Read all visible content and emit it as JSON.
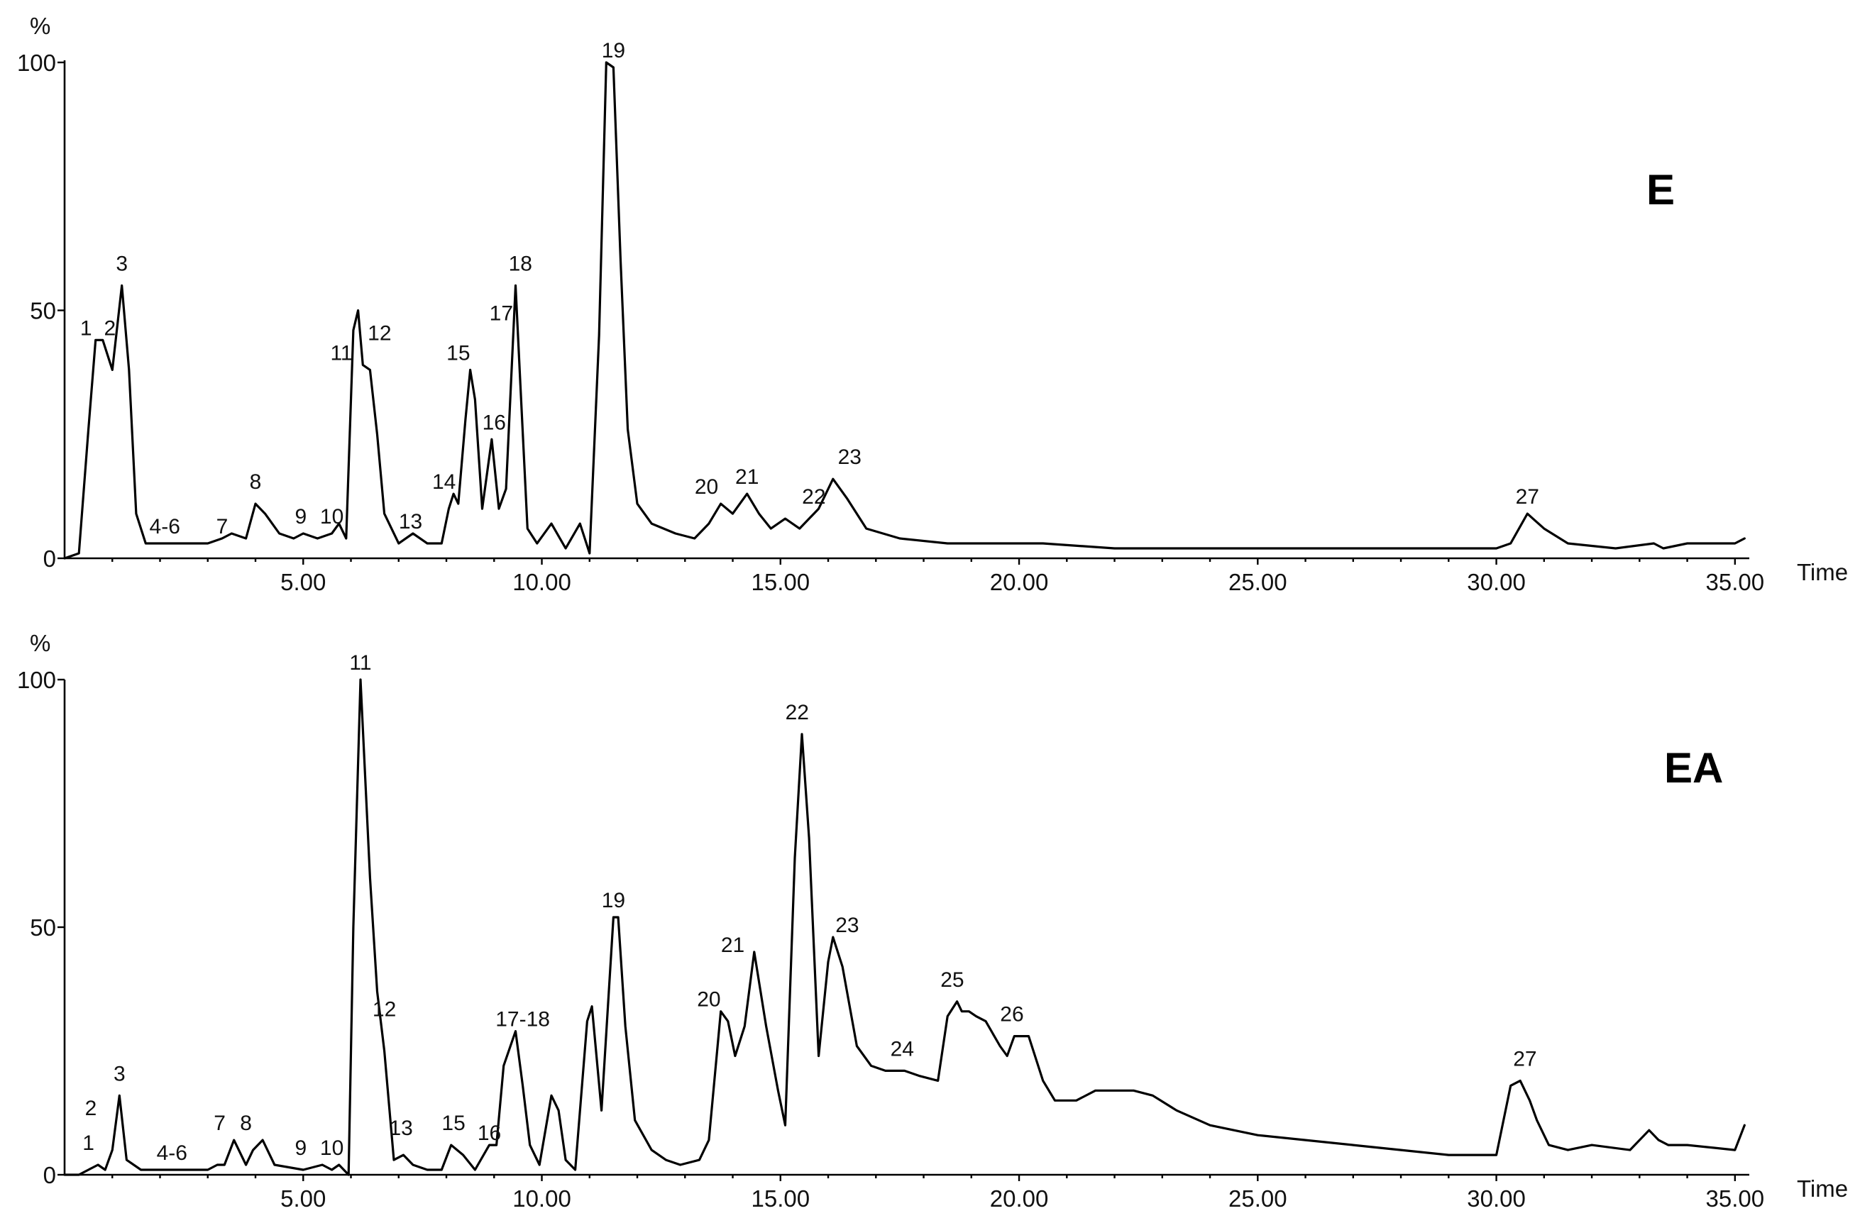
{
  "chart_data": [
    {
      "type": "line",
      "panel_label": "E",
      "ylabel": "%",
      "xlabel": "Time",
      "xlim": [
        0,
        35.3
      ],
      "ylim": [
        0,
        100
      ],
      "xticks": [
        "5.00",
        "10.00",
        "15.00",
        "20.00",
        "25.00",
        "30.00",
        "35.00"
      ],
      "yticks": [
        "0",
        "50",
        "100"
      ],
      "series": [
        {
          "x": [
            0.0,
            0.3,
            0.5,
            0.65,
            0.8,
            1.0,
            1.2,
            1.35,
            1.5,
            1.7,
            1.9,
            2.1,
            2.5,
            3.0,
            3.3,
            3.5,
            3.8,
            4.0,
            4.2,
            4.5,
            4.8,
            5.0,
            5.3,
            5.6,
            5.75,
            5.9,
            6.05,
            6.15,
            6.25,
            6.4,
            6.55,
            6.7,
            7.0,
            7.3,
            7.6,
            7.9,
            8.05,
            8.15,
            8.25,
            8.4,
            8.5,
            8.6,
            8.75,
            8.95,
            9.1,
            9.25,
            9.45,
            9.55,
            9.7,
            9.9,
            10.2,
            10.5,
            10.8,
            11.0,
            11.2,
            11.35,
            11.5,
            11.65,
            11.8,
            12.0,
            12.3,
            12.8,
            13.2,
            13.5,
            13.75,
            14.0,
            14.3,
            14.55,
            14.8,
            15.1,
            15.4,
            15.8,
            16.1,
            16.4,
            16.8,
            17.5,
            18.5,
            19.5,
            20.5,
            22.0,
            25.0,
            28.0,
            30.0,
            30.3,
            30.65,
            31.0,
            31.5,
            32.5,
            33.3,
            33.5,
            34.0,
            35.0,
            35.2
          ],
          "y": [
            0,
            1,
            26,
            44,
            44,
            38,
            55,
            38,
            9,
            3,
            3,
            3,
            3,
            3,
            4,
            5,
            4,
            11,
            9,
            5,
            4,
            5,
            4,
            5,
            7,
            4,
            46,
            50,
            39,
            38,
            25,
            9,
            3,
            5,
            3,
            3,
            10,
            13,
            11,
            28,
            38,
            32,
            10,
            24,
            10,
            14,
            55,
            35,
            6,
            3,
            7,
            2,
            7,
            1,
            45,
            100,
            99,
            60,
            26,
            11,
            7,
            5,
            4,
            7,
            11,
            9,
            13,
            9,
            6,
            8,
            6,
            10,
            16,
            12,
            6,
            4,
            3,
            3,
            3,
            2,
            2,
            2,
            2,
            3,
            9,
            6,
            3,
            2,
            3,
            2,
            3,
            3,
            4
          ]
        }
      ],
      "annotations": [
        {
          "text": "1",
          "x": 0.45,
          "y": 45
        },
        {
          "text": "2",
          "x": 0.95,
          "y": 45
        },
        {
          "text": "3",
          "x": 1.2,
          "y": 58
        },
        {
          "text": "4-6",
          "x": 2.1,
          "y": 5
        },
        {
          "text": "7",
          "x": 3.3,
          "y": 5
        },
        {
          "text": "8",
          "x": 4.0,
          "y": 14
        },
        {
          "text": "9",
          "x": 4.95,
          "y": 7
        },
        {
          "text": "10",
          "x": 5.6,
          "y": 7
        },
        {
          "text": "11",
          "x": 5.8,
          "y": 40
        },
        {
          "text": "12",
          "x": 6.6,
          "y": 44
        },
        {
          "text": "13",
          "x": 7.25,
          "y": 6
        },
        {
          "text": "14",
          "x": 7.95,
          "y": 14
        },
        {
          "text": "15",
          "x": 8.25,
          "y": 40
        },
        {
          "text": "16",
          "x": 9.0,
          "y": 26
        },
        {
          "text": "17",
          "x": 9.15,
          "y": 48
        },
        {
          "text": "18",
          "x": 9.55,
          "y": 58
        },
        {
          "text": "19",
          "x": 11.5,
          "y": 101
        },
        {
          "text": "20",
          "x": 13.45,
          "y": 13
        },
        {
          "text": "21",
          "x": 14.3,
          "y": 15
        },
        {
          "text": "22",
          "x": 15.7,
          "y": 11
        },
        {
          "text": "23",
          "x": 16.45,
          "y": 19
        },
        {
          "text": "27",
          "x": 30.65,
          "y": 11
        }
      ]
    },
    {
      "type": "line",
      "panel_label": "EA",
      "ylabel": "%",
      "xlabel": "Time",
      "xlim": [
        0,
        35.3
      ],
      "ylim": [
        0,
        100
      ],
      "xticks": [
        "5.00",
        "10.00",
        "15.00",
        "20.00",
        "25.00",
        "30.00",
        "35.00"
      ],
      "yticks": [
        "0",
        "50",
        "100"
      ],
      "series": [
        {
          "x": [
            0.0,
            0.3,
            0.5,
            0.7,
            0.85,
            1.0,
            1.15,
            1.3,
            1.6,
            2.0,
            2.5,
            3.0,
            3.2,
            3.35,
            3.55,
            3.8,
            3.95,
            4.15,
            4.4,
            5.0,
            5.4,
            5.6,
            5.75,
            5.95,
            6.05,
            6.2,
            6.4,
            6.55,
            6.7,
            6.9,
            7.1,
            7.3,
            7.6,
            7.9,
            8.1,
            8.35,
            8.6,
            8.9,
            9.05,
            9.2,
            9.45,
            9.6,
            9.75,
            9.95,
            10.2,
            10.35,
            10.5,
            10.7,
            10.95,
            11.05,
            11.25,
            11.5,
            11.6,
            11.75,
            11.95,
            12.3,
            12.6,
            12.9,
            13.3,
            13.5,
            13.75,
            13.9,
            14.05,
            14.25,
            14.45,
            14.7,
            14.95,
            15.1,
            15.3,
            15.45,
            15.6,
            15.8,
            16.0,
            16.1,
            16.3,
            16.6,
            16.9,
            17.2,
            17.6,
            17.9,
            18.3,
            18.5,
            18.7,
            18.8,
            18.95,
            19.1,
            19.3,
            19.6,
            19.75,
            19.9,
            20.2,
            20.5,
            20.75,
            21.2,
            21.6,
            22.0,
            22.4,
            22.8,
            23.3,
            24.0,
            25.0,
            26.0,
            27.0,
            28.0,
            29.0,
            30.0,
            30.3,
            30.5,
            30.7,
            30.85,
            31.1,
            31.5,
            32.0,
            32.8,
            33.2,
            33.4,
            33.6,
            34.0,
            35.0,
            35.2
          ],
          "y": [
            0,
            0,
            1,
            2,
            1,
            5,
            16,
            3,
            1,
            1,
            1,
            1,
            2,
            2,
            7,
            2,
            5,
            7,
            2,
            1,
            2,
            1,
            2,
            0,
            50,
            100,
            60,
            37,
            25,
            3,
            4,
            2,
            1,
            1,
            6,
            4,
            1,
            6,
            6,
            22,
            29,
            18,
            6,
            2,
            16,
            13,
            3,
            1,
            31,
            34,
            13,
            52,
            52,
            30,
            11,
            5,
            3,
            2,
            3,
            7,
            33,
            31,
            24,
            30,
            45,
            30,
            17,
            10,
            64,
            89,
            68,
            24,
            43,
            48,
            42,
            26,
            22,
            21,
            21,
            20,
            19,
            32,
            35,
            33,
            33,
            32,
            31,
            26,
            24,
            28,
            28,
            19,
            15,
            15,
            17,
            17,
            17,
            16,
            13,
            10,
            8,
            7,
            6,
            5,
            4,
            4,
            18,
            19,
            15,
            11,
            6,
            5,
            6,
            5,
            9,
            7,
            6,
            6,
            5,
            10
          ]
        }
      ],
      "annotations": [
        {
          "text": "1",
          "x": 0.5,
          "y": 5
        },
        {
          "text": "2",
          "x": 0.55,
          "y": 12
        },
        {
          "text": "3",
          "x": 1.15,
          "y": 19
        },
        {
          "text": "4-6",
          "x": 2.25,
          "y": 3
        },
        {
          "text": "7",
          "x": 3.25,
          "y": 9
        },
        {
          "text": "8",
          "x": 3.8,
          "y": 9
        },
        {
          "text": "9",
          "x": 4.95,
          "y": 4
        },
        {
          "text": "10",
          "x": 5.6,
          "y": 4
        },
        {
          "text": "11",
          "x": 6.2,
          "y": 102
        },
        {
          "text": "12",
          "x": 6.7,
          "y": 32
        },
        {
          "text": "13",
          "x": 7.05,
          "y": 8
        },
        {
          "text": "15",
          "x": 8.15,
          "y": 9
        },
        {
          "text": "16",
          "x": 8.9,
          "y": 7
        },
        {
          "text": "17-18",
          "x": 9.6,
          "y": 30
        },
        {
          "text": "19",
          "x": 11.5,
          "y": 54
        },
        {
          "text": "20",
          "x": 13.5,
          "y": 34
        },
        {
          "text": "21",
          "x": 14.0,
          "y": 45
        },
        {
          "text": "22",
          "x": 15.35,
          "y": 92
        },
        {
          "text": "23",
          "x": 16.4,
          "y": 49
        },
        {
          "text": "24",
          "x": 17.55,
          "y": 24
        },
        {
          "text": "25",
          "x": 18.6,
          "y": 38
        },
        {
          "text": "26",
          "x": 19.85,
          "y": 31
        },
        {
          "text": "27",
          "x": 30.6,
          "y": 22
        }
      ]
    }
  ]
}
